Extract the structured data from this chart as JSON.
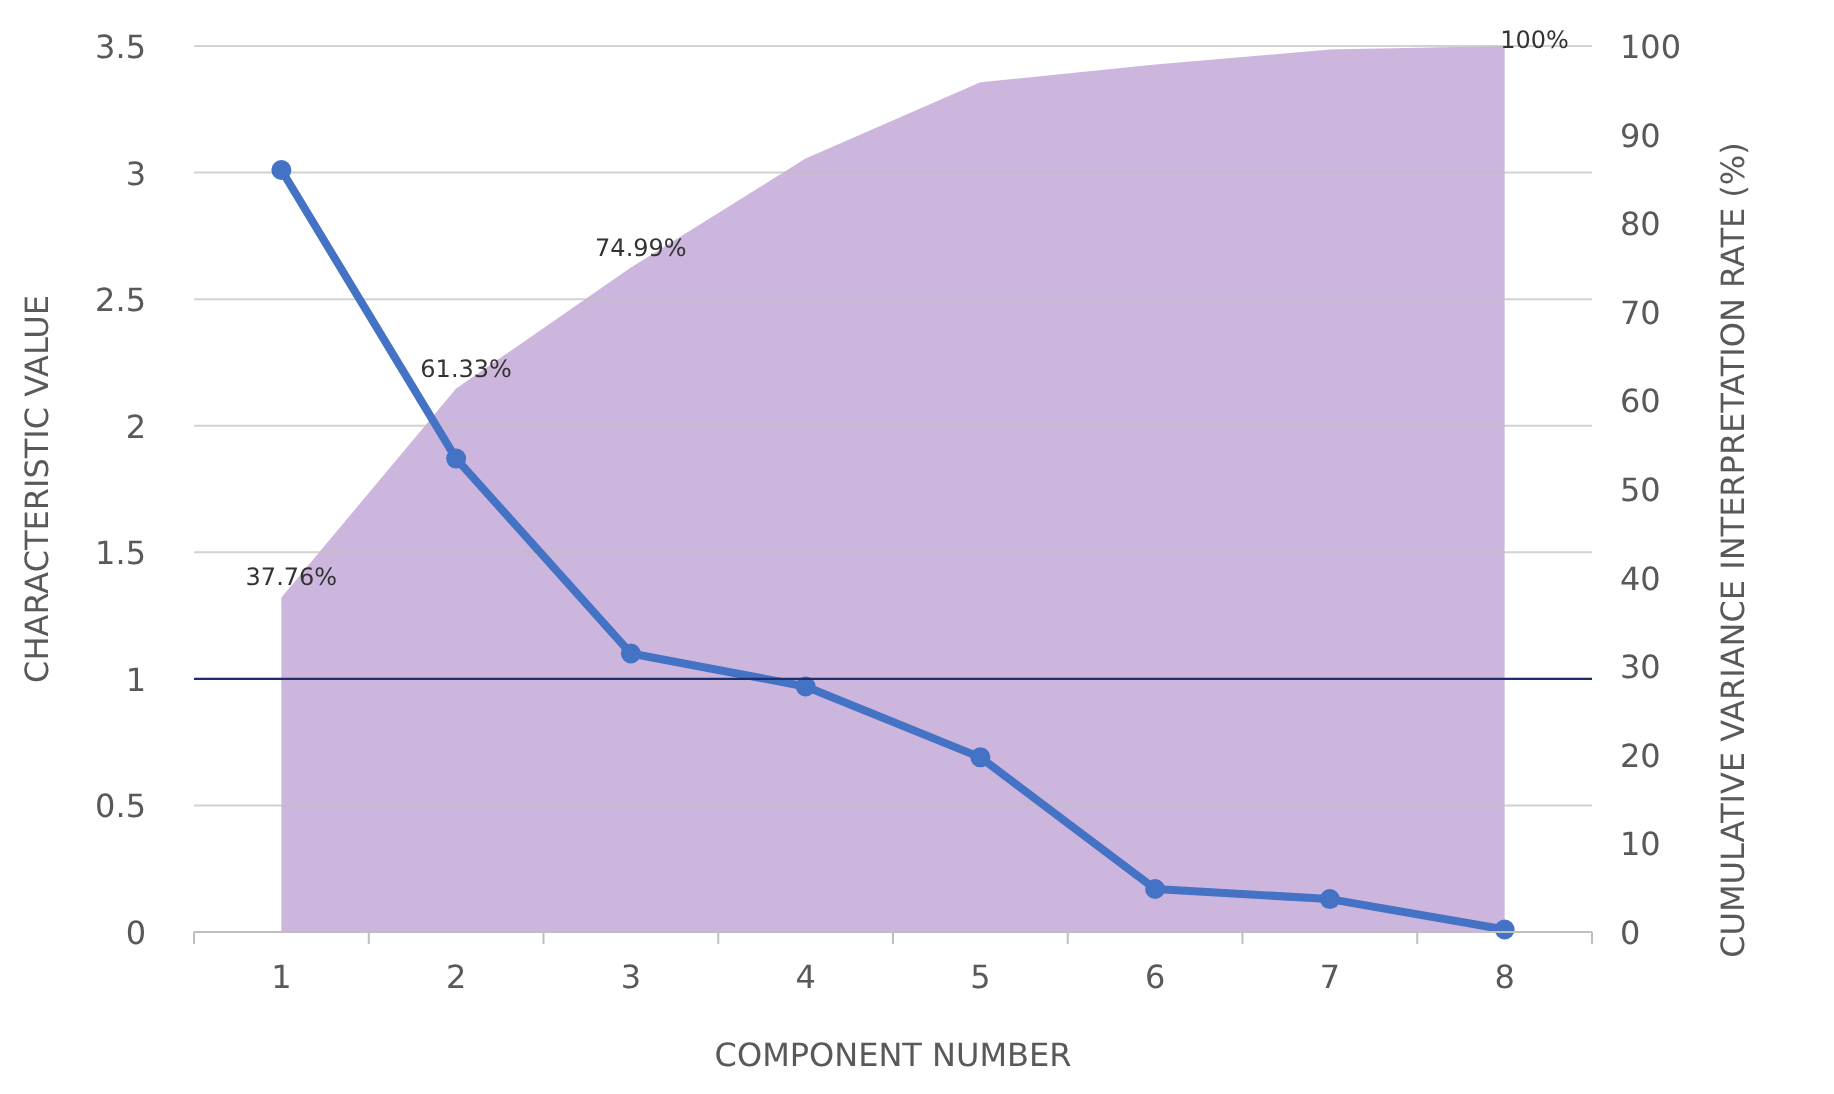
{
  "chart_data": {
    "type": "line",
    "xlabel": "COMPONENT NUMBER",
    "ylabel": "CHARACTERISTIC VALUE",
    "y2label": "CUMULATIVE VARIANCE INTERPRETATION RATE (%)",
    "categories": [
      "1",
      "2",
      "3",
      "4",
      "5",
      "6",
      "7",
      "8"
    ],
    "series": [
      {
        "type": "area",
        "axis": "y2",
        "color": "#cdb6de",
        "values": [
          37.76,
          61.33,
          74.99,
          87.3,
          95.9,
          97.9,
          99.6,
          100
        ],
        "value_labels": [
          "37.76%",
          "61.33%",
          "74.99%",
          null,
          null,
          null,
          null,
          "100%"
        ]
      },
      {
        "color": "#4472c4",
        "marker": "circle",
        "values": [
          3.01,
          1.87,
          1.1,
          0.97,
          0.69,
          0.17,
          0.13,
          0.01
        ]
      }
    ],
    "ylim": [
      0,
      3.5
    ],
    "yticks": [
      0,
      0.5,
      1,
      1.5,
      2,
      2.5,
      3,
      3.5
    ],
    "y2lim": [
      0,
      100
    ],
    "y2ticks": [
      0,
      10,
      20,
      30,
      40,
      50,
      60,
      70,
      80,
      90,
      100
    ],
    "ref_lines": [
      {
        "axis": "y",
        "value": 1,
        "color": "#1f2f6e"
      }
    ],
    "grid": "y",
    "line_style": "solid"
  }
}
